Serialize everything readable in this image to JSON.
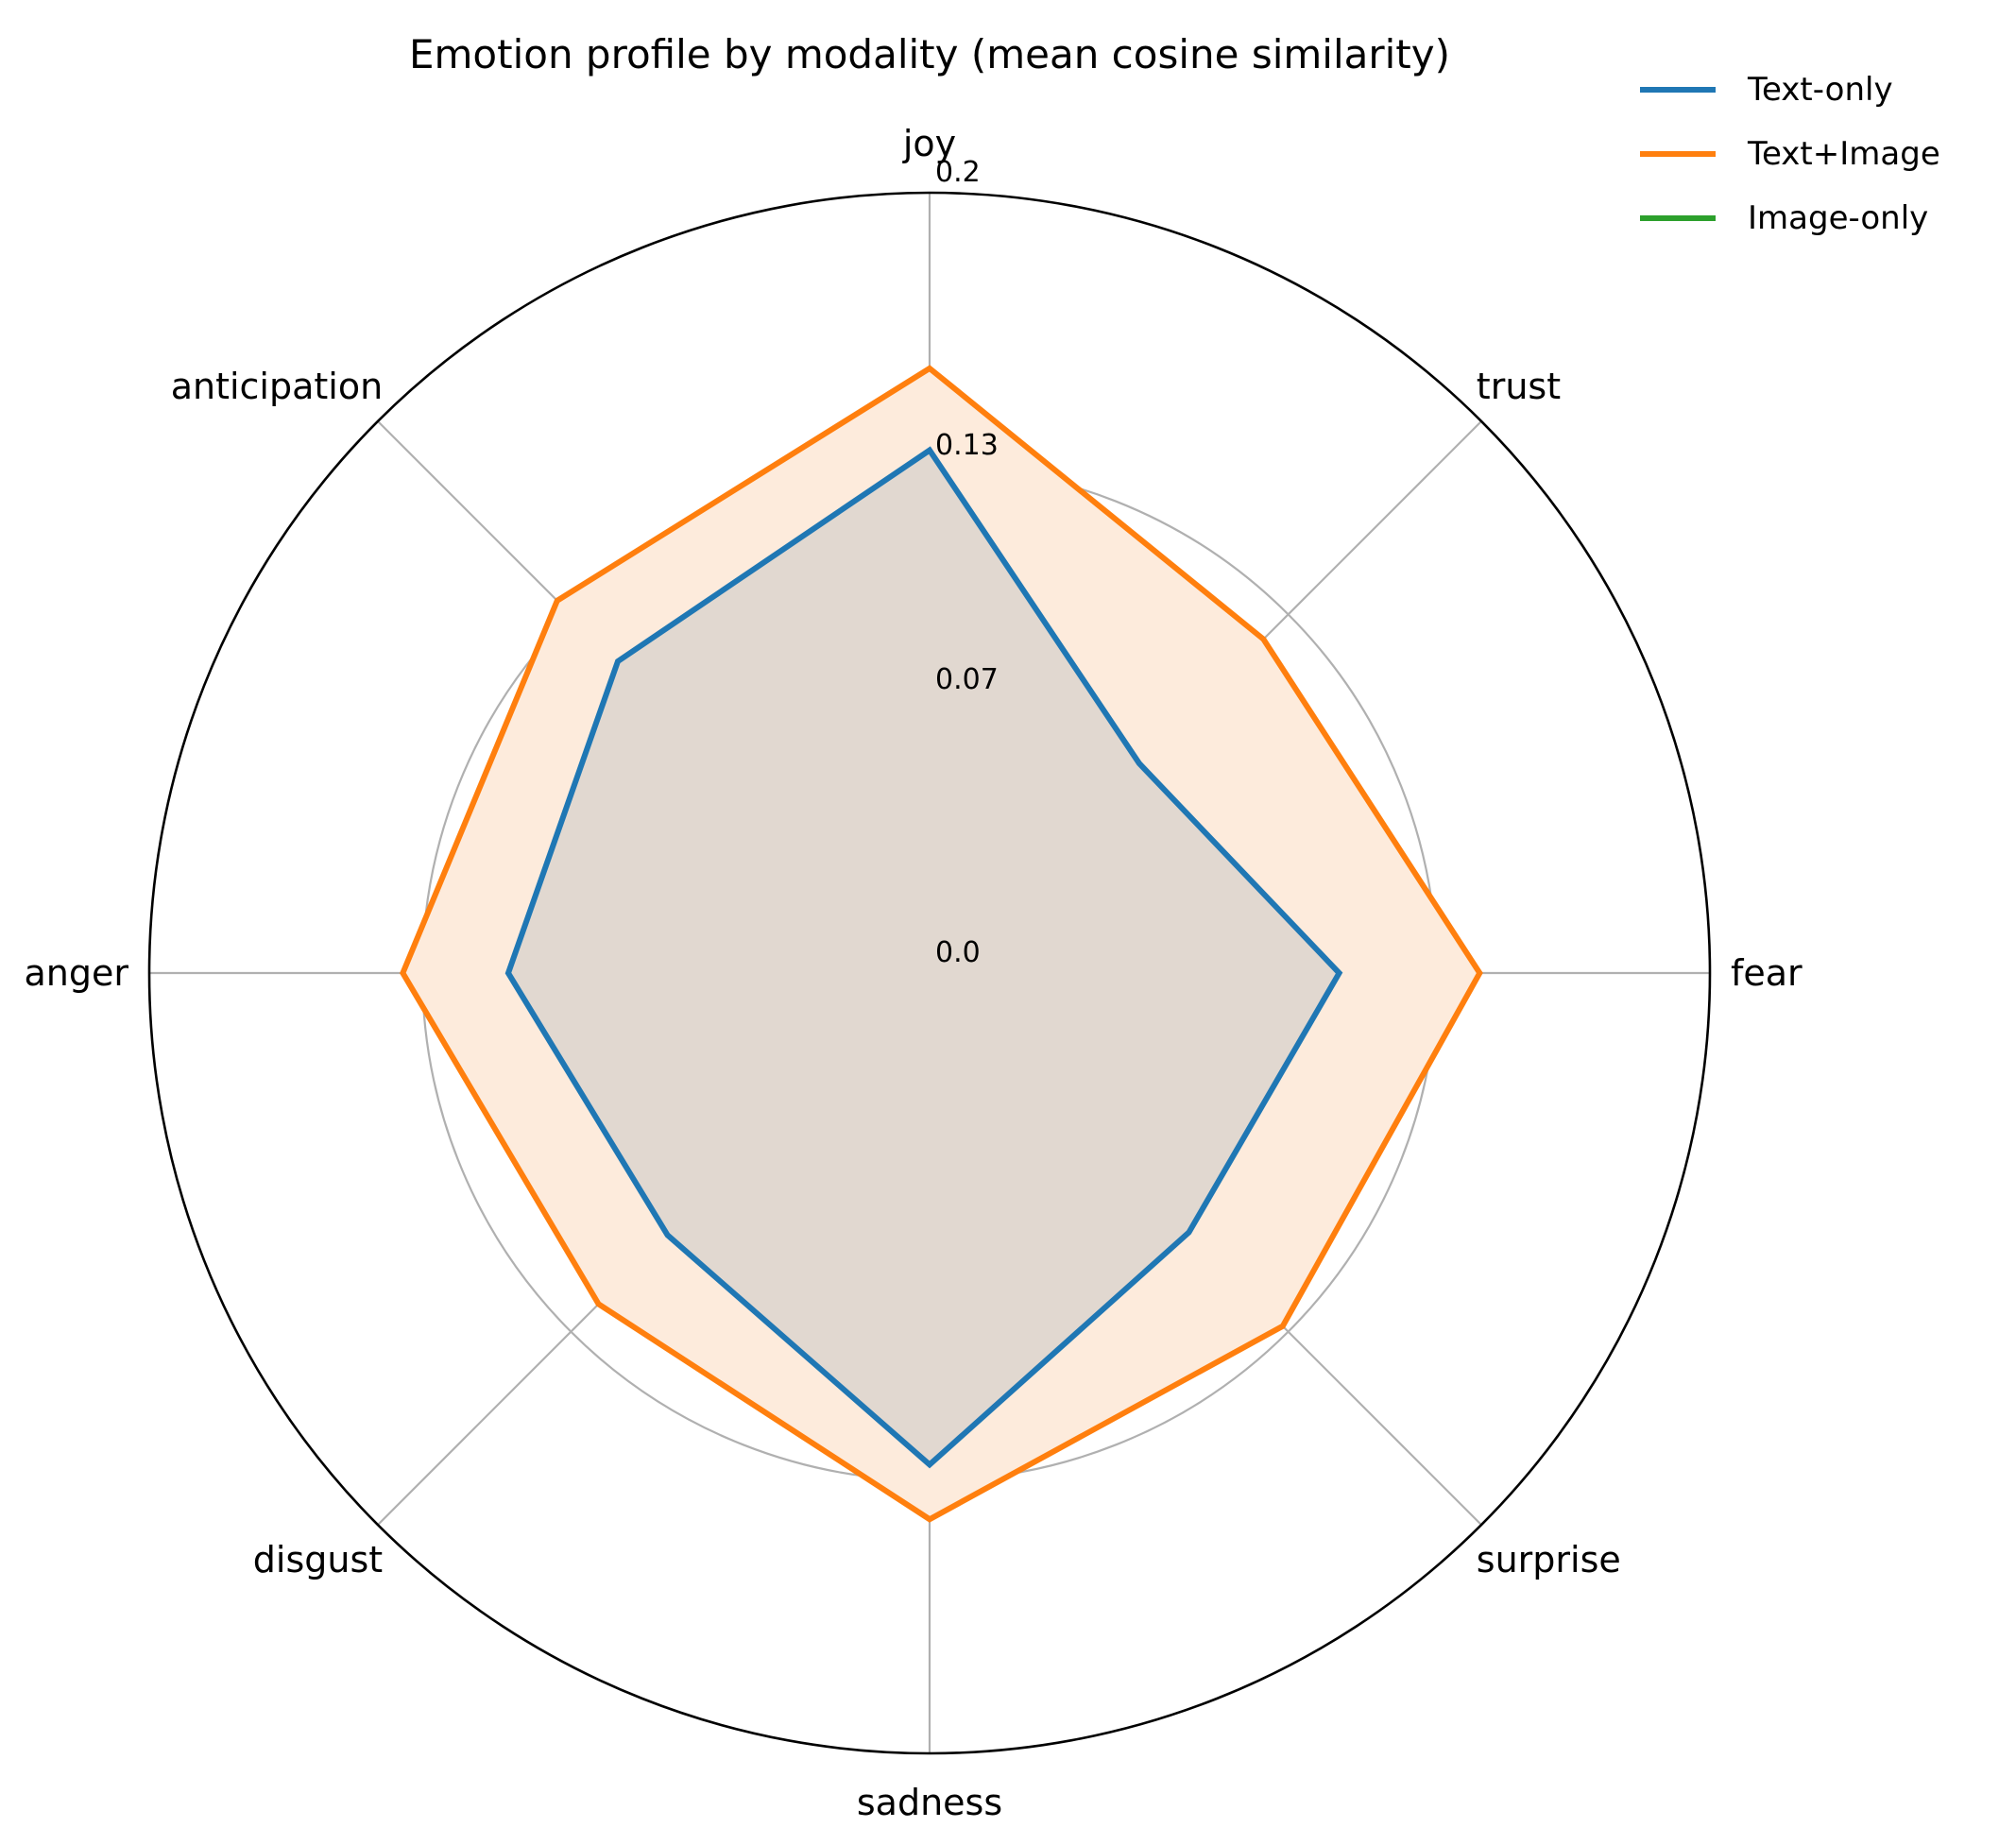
{
  "chart_data": {
    "type": "radar",
    "title": "Emotion profile by modality (mean cosine similarity)",
    "categories": [
      "joy",
      "trust",
      "fear",
      "surprise",
      "sadness",
      "disgust",
      "anger",
      "anticipation"
    ],
    "radial_ticks": [
      0.0,
      0.07,
      0.13,
      0.2
    ],
    "radial_tick_labels": [
      "0.0",
      "0.07",
      "0.13",
      "0.2"
    ],
    "rlim": [
      0.0,
      0.2
    ],
    "grid": true,
    "legend_position": "top-right",
    "series": [
      {
        "name": "Text-only",
        "color": "#1f77b4",
        "values": [
          0.134,
          0.076,
          0.105,
          0.094,
          0.126,
          0.095,
          0.108,
          0.113
        ],
        "fill": false
      },
      {
        "name": "Text+Image",
        "color": "#ff7f0e",
        "values": [
          0.155,
          0.121,
          0.141,
          0.128,
          0.14,
          0.12,
          0.135,
          0.135
        ],
        "fill": true,
        "fill_color": "#fdebdc"
      },
      {
        "name": "Image-only",
        "color": "#2ca02c",
        "values": [
          0,
          0,
          0,
          0,
          0,
          0,
          0,
          0
        ],
        "fill": false
      }
    ],
    "overlap_fill_color": "#e1d8d0"
  }
}
